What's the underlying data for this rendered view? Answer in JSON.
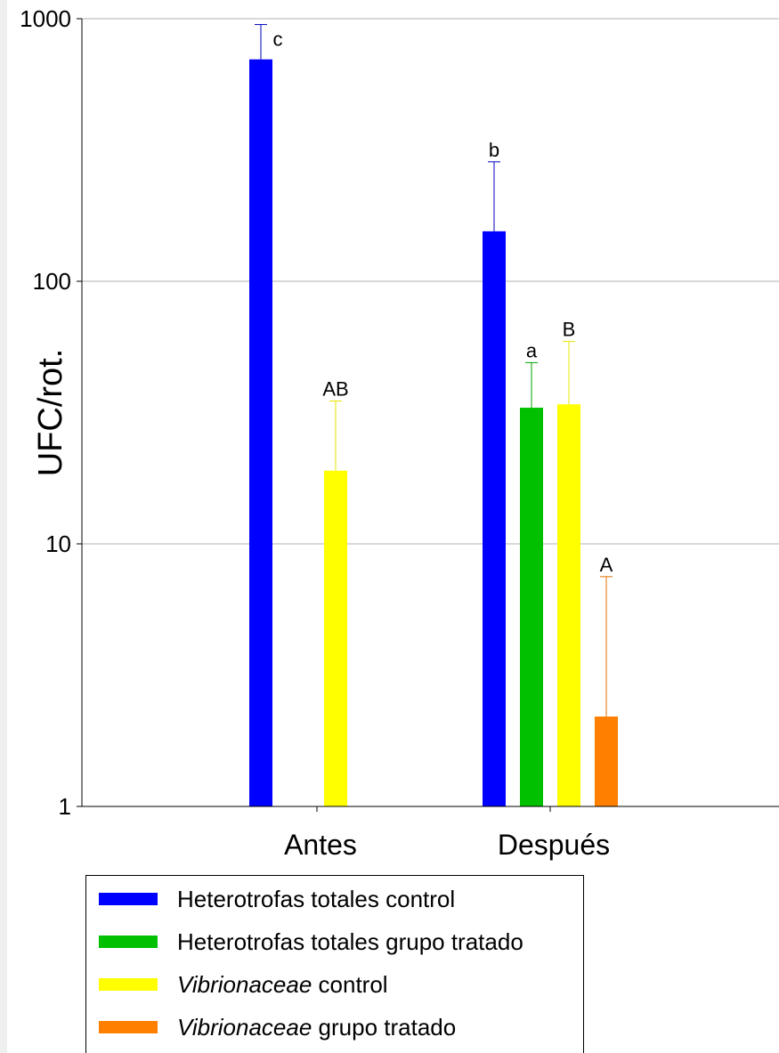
{
  "chart_data": {
    "type": "bar",
    "ylabel": "UFC/rot.",
    "yscale": "log",
    "ylim": [
      1,
      1000
    ],
    "yticks": [
      "1",
      "10",
      "100",
      "1000"
    ],
    "ytick_values": [
      1,
      10,
      100,
      1000
    ],
    "grid": true,
    "categories": [
      "Antes",
      "Después"
    ],
    "series": [
      {
        "name": "Heterotrofas totales control",
        "color": "#0000ff",
        "values": [
          700,
          155
        ],
        "errors": [
          950,
          285
        ],
        "labels": [
          "c",
          "b"
        ]
      },
      {
        "name": "Heterotrofas totales grupo tratado",
        "color": "#00c000",
        "values": [
          null,
          33
        ],
        "errors": [
          null,
          49
        ],
        "labels": [
          "",
          "a"
        ]
      },
      {
        "name": "Vibrionaceae control",
        "color": "#ffff00",
        "values": [
          19,
          34
        ],
        "errors": [
          35,
          59
        ],
        "labels": [
          "AB",
          "B"
        ]
      },
      {
        "name": "Vibrionaceae grupo tratado",
        "color": "#ff8000",
        "values": [
          null,
          2.2
        ],
        "errors": [
          null,
          7.5
        ],
        "labels": [
          "",
          "A"
        ]
      }
    ],
    "legend_position": "bottom"
  },
  "legend": {
    "items": [
      {
        "italic": "",
        "text": "Heterotrofas totales control"
      },
      {
        "italic": "",
        "text": "Heterotrofas totales grupo tratado"
      },
      {
        "italic": "Vibrionaceae",
        "text": " control"
      },
      {
        "italic": "Vibrionaceae",
        "text": " grupo tratado"
      }
    ]
  },
  "error_bar_colors": [
    "#0000c0",
    "#00a000",
    "#e6e600",
    "#e07000"
  ]
}
